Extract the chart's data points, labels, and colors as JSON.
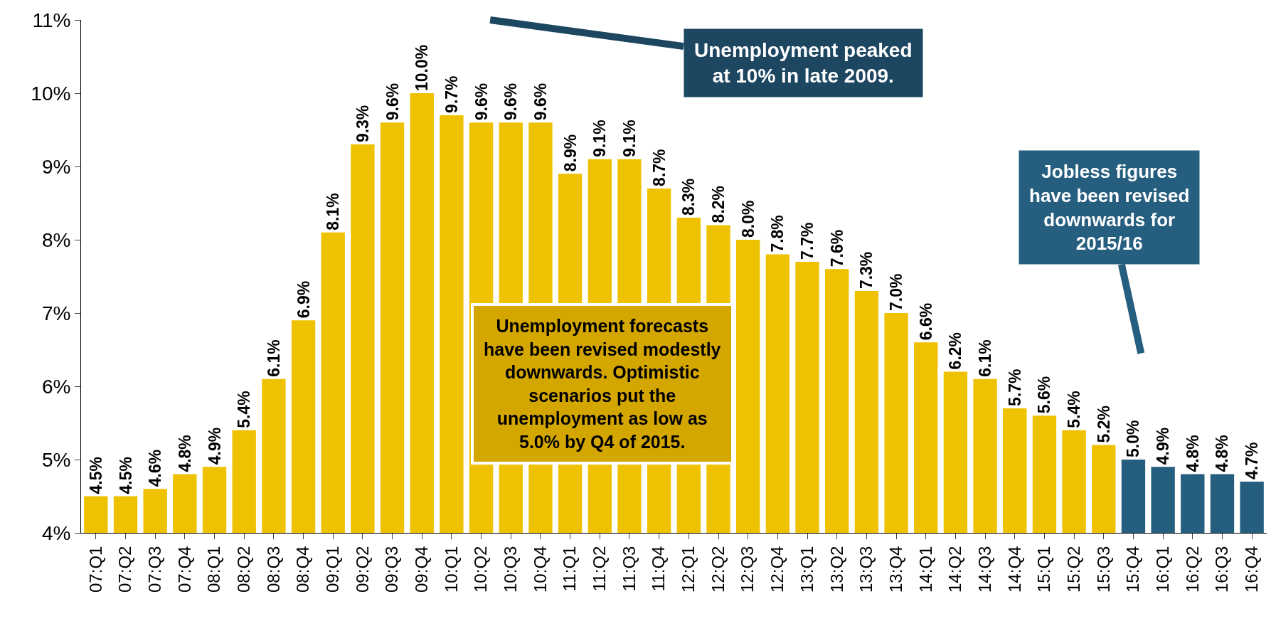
{
  "chart_data": {
    "type": "bar",
    "categories": [
      "07:Q1",
      "07:Q2",
      "07:Q3",
      "07:Q4",
      "08:Q1",
      "08:Q2",
      "08:Q3",
      "08:Q4",
      "09:Q1",
      "09:Q2",
      "09:Q3",
      "09:Q4",
      "10:Q1",
      "10:Q2",
      "10:Q3",
      "10:Q4",
      "11:Q1",
      "11:Q2",
      "11:Q3",
      "11:Q4",
      "12:Q1",
      "12:Q2",
      "12:Q3",
      "12:Q4",
      "13:Q1",
      "13:Q2",
      "13:Q3",
      "13:Q4",
      "14:Q1",
      "14:Q2",
      "14:Q3",
      "14:Q4",
      "15:Q1",
      "15:Q2",
      "15:Q3",
      "15:Q4",
      "16:Q1",
      "16:Q2",
      "16:Q3",
      "16:Q4"
    ],
    "values": [
      4.5,
      4.5,
      4.6,
      4.8,
      4.9,
      5.4,
      6.1,
      6.9,
      8.1,
      9.3,
      9.6,
      10.0,
      9.7,
      9.6,
      9.6,
      9.6,
      8.9,
      9.1,
      9.1,
      8.7,
      8.3,
      8.2,
      8.0,
      7.8,
      7.7,
      7.6,
      7.3,
      7.0,
      6.6,
      6.2,
      6.1,
      5.7,
      5.6,
      5.4,
      5.2,
      5.0,
      4.9,
      4.8,
      4.8,
      4.7
    ],
    "value_labels": [
      "4.5%",
      "4.5%",
      "4.6%",
      "4.8%",
      "4.9%",
      "5.4%",
      "6.1%",
      "6.9%",
      "8.1%",
      "9.3%",
      "9.6%",
      "10.0%",
      "9.7%",
      "9.6%",
      "9.6%",
      "9.6%",
      "8.9%",
      "9.1%",
      "9.1%",
      "8.7%",
      "8.3%",
      "8.2%",
      "8.0%",
      "7.8%",
      "7.7%",
      "7.6%",
      "7.3%",
      "7.0%",
      "6.6%",
      "6.2%",
      "6.1%",
      "5.7%",
      "5.6%",
      "5.4%",
      "5.2%",
      "5.0%",
      "4.9%",
      "4.8%",
      "4.8%",
      "4.7%"
    ],
    "colors": [
      "#eec200",
      "#eec200",
      "#eec200",
      "#eec200",
      "#eec200",
      "#eec200",
      "#eec200",
      "#eec200",
      "#eec200",
      "#eec200",
      "#eec200",
      "#eec200",
      "#eec200",
      "#eec200",
      "#eec200",
      "#eec200",
      "#eec200",
      "#eec200",
      "#eec200",
      "#eec200",
      "#eec200",
      "#eec200",
      "#eec200",
      "#eec200",
      "#eec200",
      "#eec200",
      "#eec200",
      "#eec200",
      "#eec200",
      "#eec200",
      "#eec200",
      "#eec200",
      "#eec200",
      "#eec200",
      "#eec200",
      "#255e7e",
      "#255e7e",
      "#255e7e",
      "#255e7e",
      "#255e7e"
    ],
    "ylim": [
      4,
      11
    ],
    "yticks": [
      {
        "value": 4,
        "label": "4%"
      },
      {
        "value": 5,
        "label": "5%"
      },
      {
        "value": 6,
        "label": "6%"
      },
      {
        "value": 7,
        "label": "7%"
      },
      {
        "value": 8,
        "label": "8%"
      },
      {
        "value": 9,
        "label": "9%"
      },
      {
        "value": 10,
        "label": "10%"
      },
      {
        "value": 11,
        "label": "11%"
      }
    ],
    "grid": false,
    "annotations": [
      "Unemployment peaked\nat 10% in late 2009.",
      "Jobless figures\nhave been revised\ndownwards for\n2015/16",
      "Unemployment forecasts\nhave been revised modestly\ndownwards. Optimistic\nscenarios put the\nunemployment as low as\n5.0% by Q4 of 2015."
    ]
  }
}
